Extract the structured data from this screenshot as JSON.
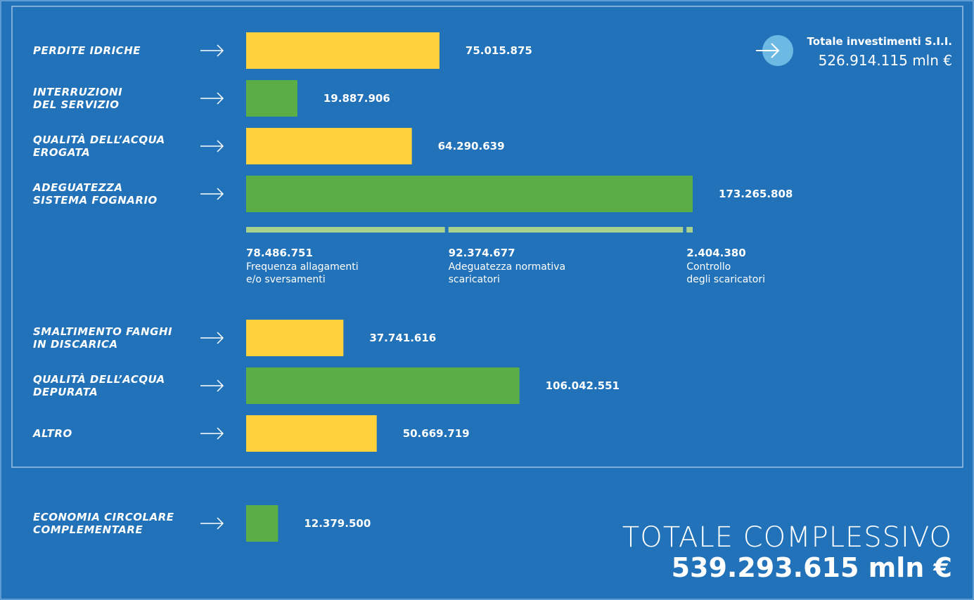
{
  "chart_data": {
    "type": "bar",
    "orientation": "horizontal",
    "categories": [
      "PERDITE IDRICHE",
      "INTERRUZIONI\nDEL SERVIZIO",
      "QUALITÀ DELL’ACQUA\nEROGATA",
      "ADEGUATEZZA\nSISTEMA FOGNARIO",
      "SMALTIMENTO FANGHI\nIN DISCARICA",
      "QUALITÀ DELL’ACQUA\nDEPURATA",
      "ALTRO"
    ],
    "values": [
      75015875,
      19887906,
      64290639,
      173265808,
      37741616,
      106042551,
      50669719
    ],
    "value_labels": [
      "75.015.875",
      "19.887.906",
      "64.290.639",
      "173.265.808",
      "37.741.616",
      "106.042.551",
      "50.669.719"
    ],
    "colors": [
      "#fdd23a",
      "#5aae45",
      "#fdd23a",
      "#5aae45",
      "#fdd23a",
      "#5aae45",
      "#fdd23a"
    ],
    "breakdown": {
      "color": "#a9d18e",
      "values": [
        78486751,
        92374677,
        2404380
      ],
      "value_labels": [
        "78.486.751",
        "92.374.677",
        "2.404.380"
      ],
      "labels": [
        "Frequenza allagamenti\ne/o sversamenti",
        "Adeguatezza normativa\nscaricatori",
        "Controllo\ndegli scaricatori"
      ]
    },
    "subtotal": {
      "label": "Totale investimenti S.I.I.",
      "value_label": "526.914.115 mln €"
    },
    "extra": {
      "category": "ECONOMIA CIRCOLARE\nCOMPLEMENTARE",
      "value": 12379500,
      "value_label": "12.379.500",
      "color": "#5aae45"
    },
    "total": {
      "label": "TOTALE COMPLESSIVO",
      "value_label": "539.293.615 mln €"
    }
  }
}
